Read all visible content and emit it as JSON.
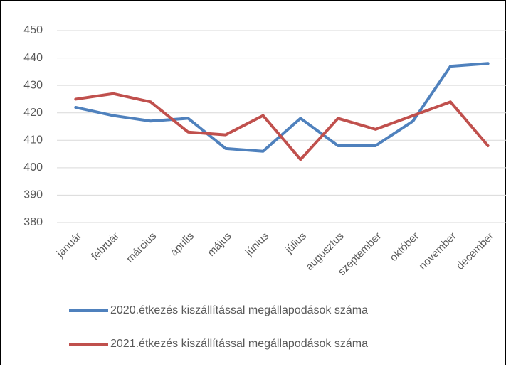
{
  "chart_data": {
    "type": "line",
    "categories": [
      "január",
      "február",
      "március",
      "április",
      "május",
      "június",
      "július",
      "augusztus",
      "szeptember",
      "október",
      "november",
      "december"
    ],
    "series": [
      {
        "name": "2020.étkezés kiszállítással megállapodások száma",
        "color": "#4f81bd",
        "values": [
          422,
          419,
          417,
          418,
          407,
          406,
          418,
          408,
          408,
          417,
          437,
          438
        ]
      },
      {
        "name": "2021.étkezés kiszállítással megállapodások száma",
        "color": "#c0504d",
        "values": [
          425,
          427,
          424,
          413,
          412,
          419,
          403,
          418,
          414,
          419,
          424,
          408
        ]
      }
    ],
    "ylim": [
      380,
      450
    ],
    "yticks": [
      380,
      390,
      400,
      410,
      420,
      430,
      440,
      450
    ],
    "grid": true,
    "legend": "bottom"
  }
}
